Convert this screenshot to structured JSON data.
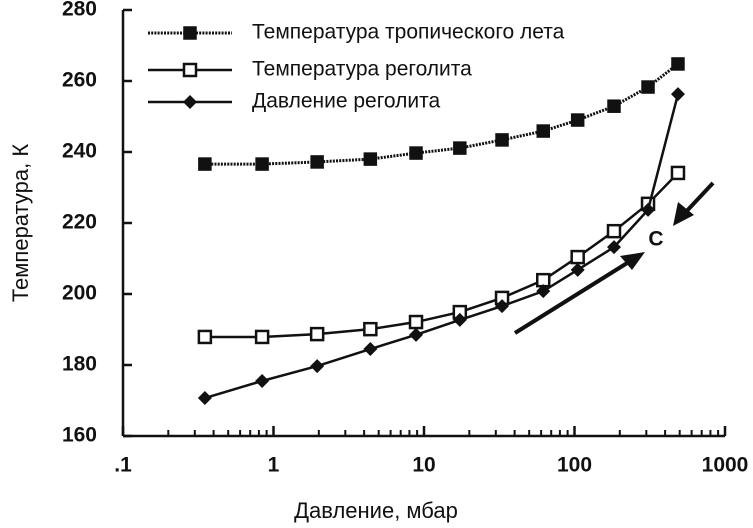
{
  "chart_data": {
    "type": "line",
    "xlabel": "Давление, мбар",
    "ylabel": "Температура, К",
    "xscale": "log",
    "xlim": [
      0.1,
      1000
    ],
    "xticks": [
      {
        "value": 0.1,
        "label": ".1"
      },
      1,
      10,
      100,
      1000
    ],
    "xminorticks": [
      0.2,
      0.3,
      0.4,
      0.5,
      0.6,
      0.7,
      0.8,
      0.9,
      2,
      3,
      4,
      5,
      6,
      7,
      8,
      9,
      20,
      30,
      40,
      50,
      60,
      70,
      80,
      90,
      200,
      300,
      400,
      500,
      600,
      700,
      800,
      900
    ],
    "ylim": [
      160,
      280
    ],
    "yticks": [
      160,
      180,
      200,
      220,
      240,
      260,
      280
    ],
    "x": [
      0.35,
      0.84,
      1.95,
      4.4,
      8.85,
      17.3,
      33,
      62,
      105,
      183,
      308,
      487
    ],
    "series": [
      {
        "name": "Температура тропического лета",
        "color": "#111111",
        "marker": "filled-square",
        "dashed": true,
        "values": [
          236.6,
          236.6,
          237.2,
          238.0,
          239.7,
          241.1,
          243.4,
          245.9,
          249.0,
          252.9,
          258.3,
          264.8
        ]
      },
      {
        "name": "Температура реголита",
        "color": "#111111",
        "marker": "open-square",
        "dashed": false,
        "values": [
          187.9,
          187.9,
          188.7,
          190.1,
          192.1,
          194.9,
          198.9,
          203.9,
          210.4,
          217.7,
          225.4,
          234.1
        ]
      },
      {
        "name": "Давление реголита",
        "color": "#111111",
        "marker": "diamond",
        "dashed": false,
        "values": [
          170.7,
          175.5,
          179.7,
          184.5,
          188.5,
          192.7,
          196.6,
          200.8,
          206.8,
          213.2,
          223.7,
          256.3
        ]
      }
    ],
    "annotation": "C"
  }
}
